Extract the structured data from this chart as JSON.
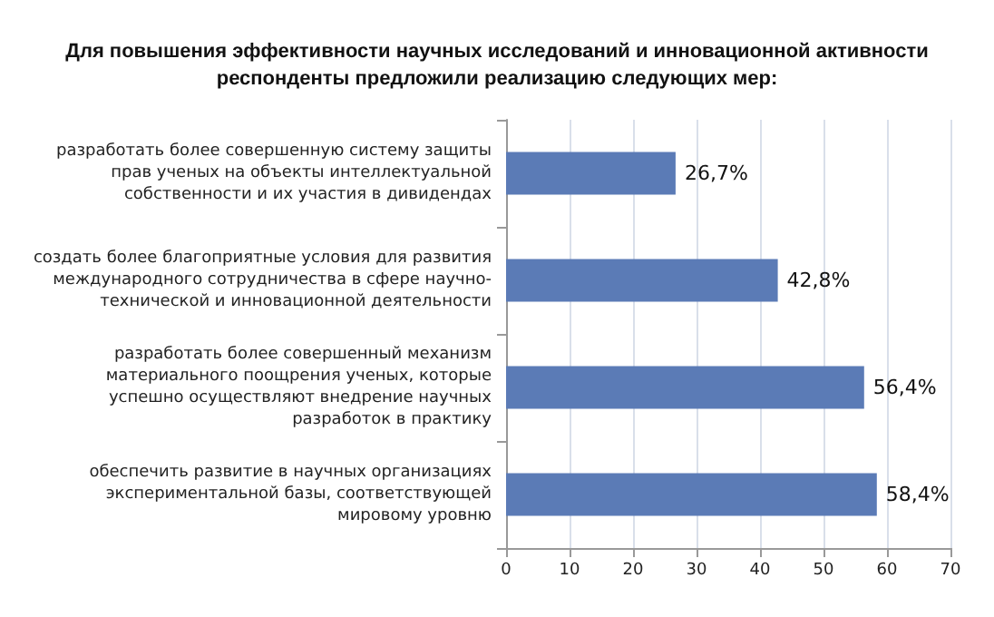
{
  "chart_data": {
    "type": "bar",
    "orientation": "horizontal",
    "title": "Для повышения эффективности научных исследований и инновационной активности\nреспонденты предложили реализацию следующих мер:",
    "categories": [
      "разработать более совершенную систему защиты\nправ ученых на объекты интеллектуальной\nсобственности и их участия в дивидендах",
      "создать более благоприятные условия для развития\nмеждународного сотрудничества в сфере научно-\nтехнической и инновационной деятельности",
      "разработать более совершенный механизм\nматериального поощрения ученых, которые\nуспешно осуществляют внедрение научных\nразработок в практику",
      "обеспечить развитие в научных организациях\nэкспериментальной базы, соответствующей\nмировому уровню"
    ],
    "values": [
      26.7,
      42.8,
      56.4,
      58.4
    ],
    "value_labels": [
      "26,7%",
      "42,8%",
      "56,4%",
      "58,4%"
    ],
    "color": "#5b7bb6",
    "xlim": [
      0,
      70
    ],
    "xticks": [
      0,
      10,
      20,
      30,
      40,
      50,
      60,
      70
    ],
    "grid": "x"
  }
}
